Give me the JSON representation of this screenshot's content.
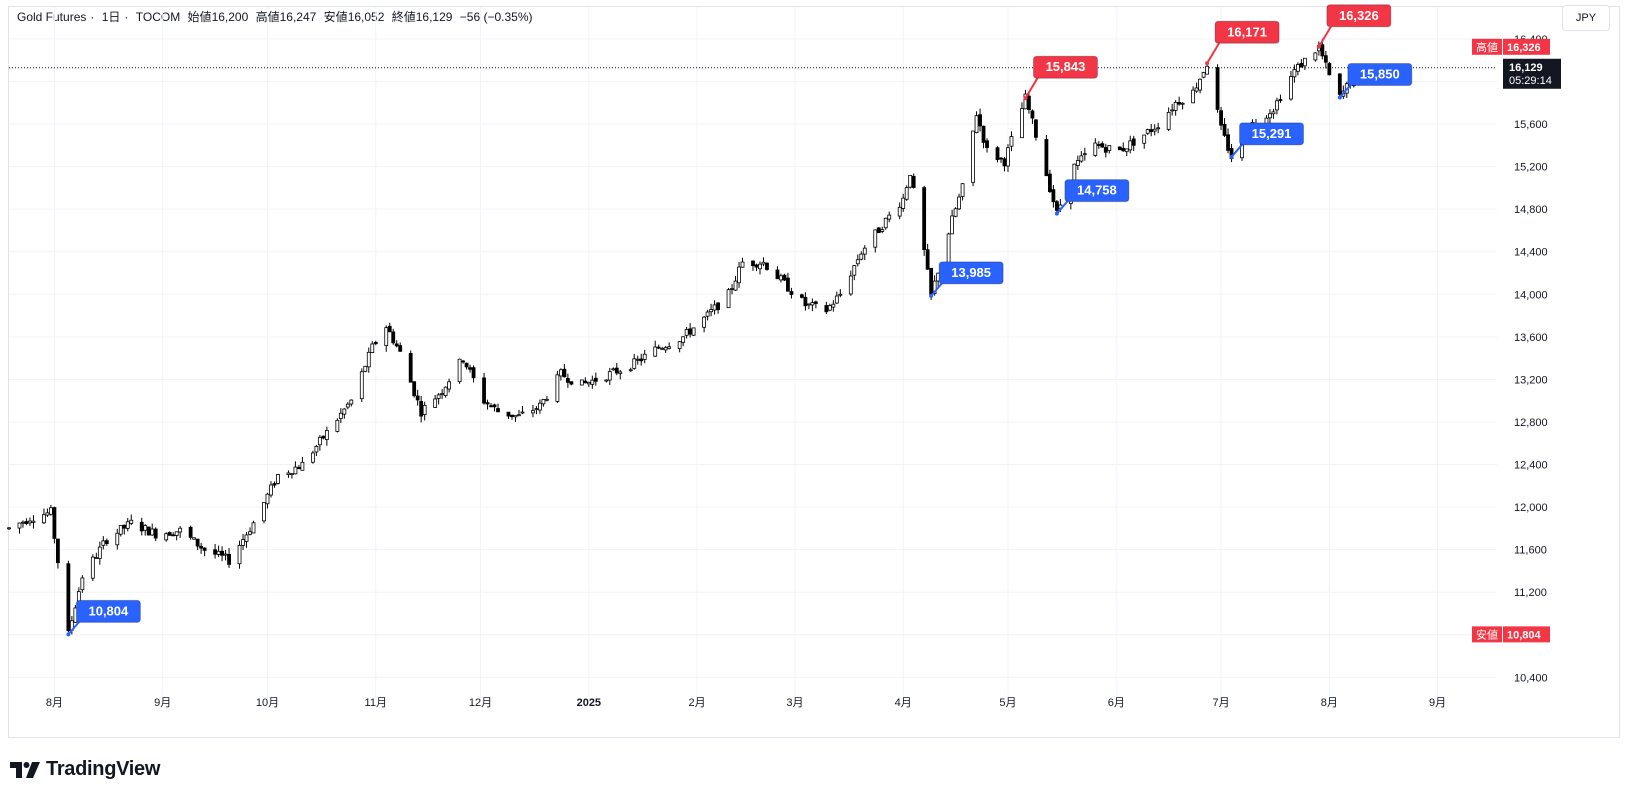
{
  "header": {
    "symbol": "Gold Futures",
    "interval": "1日",
    "exchange": "TOCOM",
    "open_label": "始値",
    "open": "16,200",
    "high_label": "高値",
    "high": "16,247",
    "low_label": "安値",
    "low": "16,052",
    "close_label": "終値",
    "close": "16,129",
    "change": "−56 (−0.35%)"
  },
  "currency": "JPY",
  "brand": "TradingView",
  "colors": {
    "up": "#ffffff",
    "down": "#000000",
    "wick": "#000000",
    "high_tag": "#f23645",
    "low_tag": "#2962ff",
    "grid": "#f0f3fa",
    "price_tag": "#131722"
  },
  "chart_data": {
    "type": "candlestick",
    "y_axis": {
      "ticks": [
        "10,400",
        "10,800",
        "11,200",
        "11,600",
        "12,000",
        "12,400",
        "12,800",
        "13,200",
        "13,600",
        "14,000",
        "14,400",
        "14,800",
        "15,200",
        "15,600",
        "16,000",
        "16,400"
      ],
      "tick_values": [
        10400,
        10800,
        11200,
        11600,
        12000,
        12400,
        12800,
        13200,
        13600,
        14000,
        14400,
        14800,
        15200,
        15600,
        16000,
        16400
      ],
      "range": [
        10300,
        16700
      ]
    },
    "x_axis": {
      "labels": [
        "8月",
        "9月",
        "10月",
        "11月",
        "12月",
        "2025",
        "2月",
        "3月",
        "4月",
        "5月",
        "6月",
        "7月",
        "8月",
        "9月"
      ],
      "range": [
        "2024-07-19",
        "2025-09-18"
      ]
    },
    "trend_points": [
      {
        "date": "2024-07-19",
        "value": 11800
      },
      {
        "date": "2024-07-25",
        "value": 11900
      },
      {
        "date": "2024-07-31",
        "value": 11950
      },
      {
        "date": "2024-08-05",
        "value": 10804
      },
      {
        "date": "2024-08-09",
        "value": 11350
      },
      {
        "date": "2024-08-16",
        "value": 11700
      },
      {
        "date": "2024-08-23",
        "value": 11850
      },
      {
        "date": "2024-08-30",
        "value": 11750
      },
      {
        "date": "2024-09-06",
        "value": 11780
      },
      {
        "date": "2024-09-13",
        "value": 11600
      },
      {
        "date": "2024-09-20",
        "value": 11500
      },
      {
        "date": "2024-09-27",
        "value": 11850
      },
      {
        "date": "2024-10-04",
        "value": 12300
      },
      {
        "date": "2024-10-11",
        "value": 12400
      },
      {
        "date": "2024-10-18",
        "value": 12700
      },
      {
        "date": "2024-10-25",
        "value": 13000
      },
      {
        "date": "2024-10-31",
        "value": 13500
      },
      {
        "date": "2024-11-04",
        "value": 13700
      },
      {
        "date": "2024-11-08",
        "value": 13450
      },
      {
        "date": "2024-11-14",
        "value": 12900
      },
      {
        "date": "2024-11-20",
        "value": 13100
      },
      {
        "date": "2024-11-26",
        "value": 13400
      },
      {
        "date": "2024-12-02",
        "value": 13000
      },
      {
        "date": "2024-12-06",
        "value": 12900
      },
      {
        "date": "2024-12-12",
        "value": 12850
      },
      {
        "date": "2024-12-18",
        "value": 12950
      },
      {
        "date": "2024-12-24",
        "value": 13250
      },
      {
        "date": "2024-12-30",
        "value": 13150
      },
      {
        "date": "2025-01-07",
        "value": 13250
      },
      {
        "date": "2025-01-14",
        "value": 13350
      },
      {
        "date": "2025-01-21",
        "value": 13500
      },
      {
        "date": "2025-01-28",
        "value": 13600
      },
      {
        "date": "2025-02-04",
        "value": 13800
      },
      {
        "date": "2025-02-10",
        "value": 14000
      },
      {
        "date": "2025-02-14",
        "value": 14300
      },
      {
        "date": "2025-02-20",
        "value": 14300
      },
      {
        "date": "2025-02-26",
        "value": 14100
      },
      {
        "date": "2025-03-04",
        "value": 13900
      },
      {
        "date": "2025-03-10",
        "value": 13850
      },
      {
        "date": "2025-03-14",
        "value": 14000
      },
      {
        "date": "2025-03-20",
        "value": 14400
      },
      {
        "date": "2025-03-26",
        "value": 14650
      },
      {
        "date": "2025-04-01",
        "value": 14900
      },
      {
        "date": "2025-04-03",
        "value": 15150
      },
      {
        "date": "2025-04-07",
        "value": 14400
      },
      {
        "date": "2025-04-09",
        "value": 13985
      },
      {
        "date": "2025-04-15",
        "value": 14700
      },
      {
        "date": "2025-04-18",
        "value": 15000
      },
      {
        "date": "2025-04-22",
        "value": 15700
      },
      {
        "date": "2025-04-25",
        "value": 15350
      },
      {
        "date": "2025-04-30",
        "value": 15250
      },
      {
        "date": "2025-05-06",
        "value": 15843
      },
      {
        "date": "2025-05-09",
        "value": 15500
      },
      {
        "date": "2025-05-15",
        "value": 14758
      },
      {
        "date": "2025-05-20",
        "value": 15200
      },
      {
        "date": "2025-05-26",
        "value": 15400
      },
      {
        "date": "2025-06-02",
        "value": 15350
      },
      {
        "date": "2025-06-09",
        "value": 15500
      },
      {
        "date": "2025-06-13",
        "value": 15600
      },
      {
        "date": "2025-06-18",
        "value": 15800
      },
      {
        "date": "2025-06-23",
        "value": 15900
      },
      {
        "date": "2025-06-27",
        "value": 16171
      },
      {
        "date": "2025-07-01",
        "value": 15550
      },
      {
        "date": "2025-07-04",
        "value": 15291
      },
      {
        "date": "2025-07-10",
        "value": 15600
      },
      {
        "date": "2025-07-16",
        "value": 15750
      },
      {
        "date": "2025-07-22",
        "value": 16100
      },
      {
        "date": "2025-07-29",
        "value": 16326
      },
      {
        "date": "2025-08-01",
        "value": 16050
      },
      {
        "date": "2025-08-04",
        "value": 15850
      },
      {
        "date": "2025-08-08",
        "value": 16050
      },
      {
        "date": "2025-08-14",
        "value": 16129
      }
    ],
    "annotations": [
      {
        "kind": "low",
        "label": "10,804",
        "date": "2024-08-05",
        "value": 10804
      },
      {
        "kind": "low",
        "label": "13,985",
        "date": "2025-04-09",
        "value": 13985
      },
      {
        "kind": "low",
        "label": "14,758",
        "date": "2025-05-15",
        "value": 14758
      },
      {
        "kind": "low",
        "label": "15,291",
        "date": "2025-07-04",
        "value": 15291
      },
      {
        "kind": "low",
        "label": "15,850",
        "date": "2025-08-04",
        "value": 15850
      },
      {
        "kind": "high",
        "label": "15,843",
        "date": "2025-05-06",
        "value": 15843
      },
      {
        "kind": "high",
        "label": "16,171",
        "date": "2025-06-27",
        "value": 16171
      },
      {
        "kind": "high",
        "label": "16,326",
        "date": "2025-07-29",
        "value": 16326
      }
    ],
    "price_tags": {
      "high_label": "高値",
      "high_value": "16,326",
      "last_value": "16,129",
      "countdown": "05:29:14",
      "low_label": "安値",
      "low_value": "10,804"
    },
    "grid": true
  }
}
